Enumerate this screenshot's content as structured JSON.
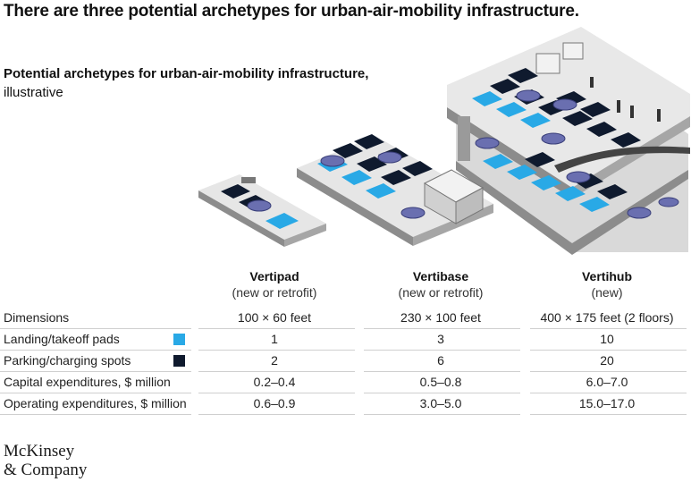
{
  "title": "There are three potential archetypes for urban-air-mobility infrastructure.",
  "subtitle": {
    "bold": "Potential archetypes for urban-air-mobility infrastructure,",
    "normal": "illustrative"
  },
  "columns": [
    {
      "name": "Vertipad",
      "sub": "(new or retrofit)"
    },
    {
      "name": "Vertibase",
      "sub": "(new or retrofit)"
    },
    {
      "name": "Vertihub",
      "sub": "(new)"
    }
  ],
  "rows": [
    {
      "label": "Dimensions",
      "values": [
        "100 × 60 feet",
        "230 × 100 feet",
        "400 × 175 feet (2 floors)"
      ]
    },
    {
      "label": "Landing/takeoff pads",
      "swatch_color": "#29a9e6",
      "values": [
        "1",
        "3",
        "10"
      ]
    },
    {
      "label": "Parking/charging spots",
      "swatch_color": "#0f1a2e",
      "values": [
        "2",
        "6",
        "20"
      ]
    },
    {
      "label": "Capital expenditures, $ million",
      "values": [
        "0.2–0.4",
        "0.5–0.8",
        "6.0–7.0"
      ]
    },
    {
      "label": "Operating expenditures, $ million",
      "values": [
        "0.6–0.9",
        "3.0–5.0",
        "15.0–17.0"
      ]
    }
  ],
  "logo": {
    "line1": "McKinsey",
    "line2": "& Company"
  },
  "colors": {
    "pad": "#29a9e6",
    "spot": "#0f1a2e",
    "platform": "#e6e6e6",
    "platform_side": "#8c8c8c",
    "aircraft": "#6a6fb0"
  }
}
